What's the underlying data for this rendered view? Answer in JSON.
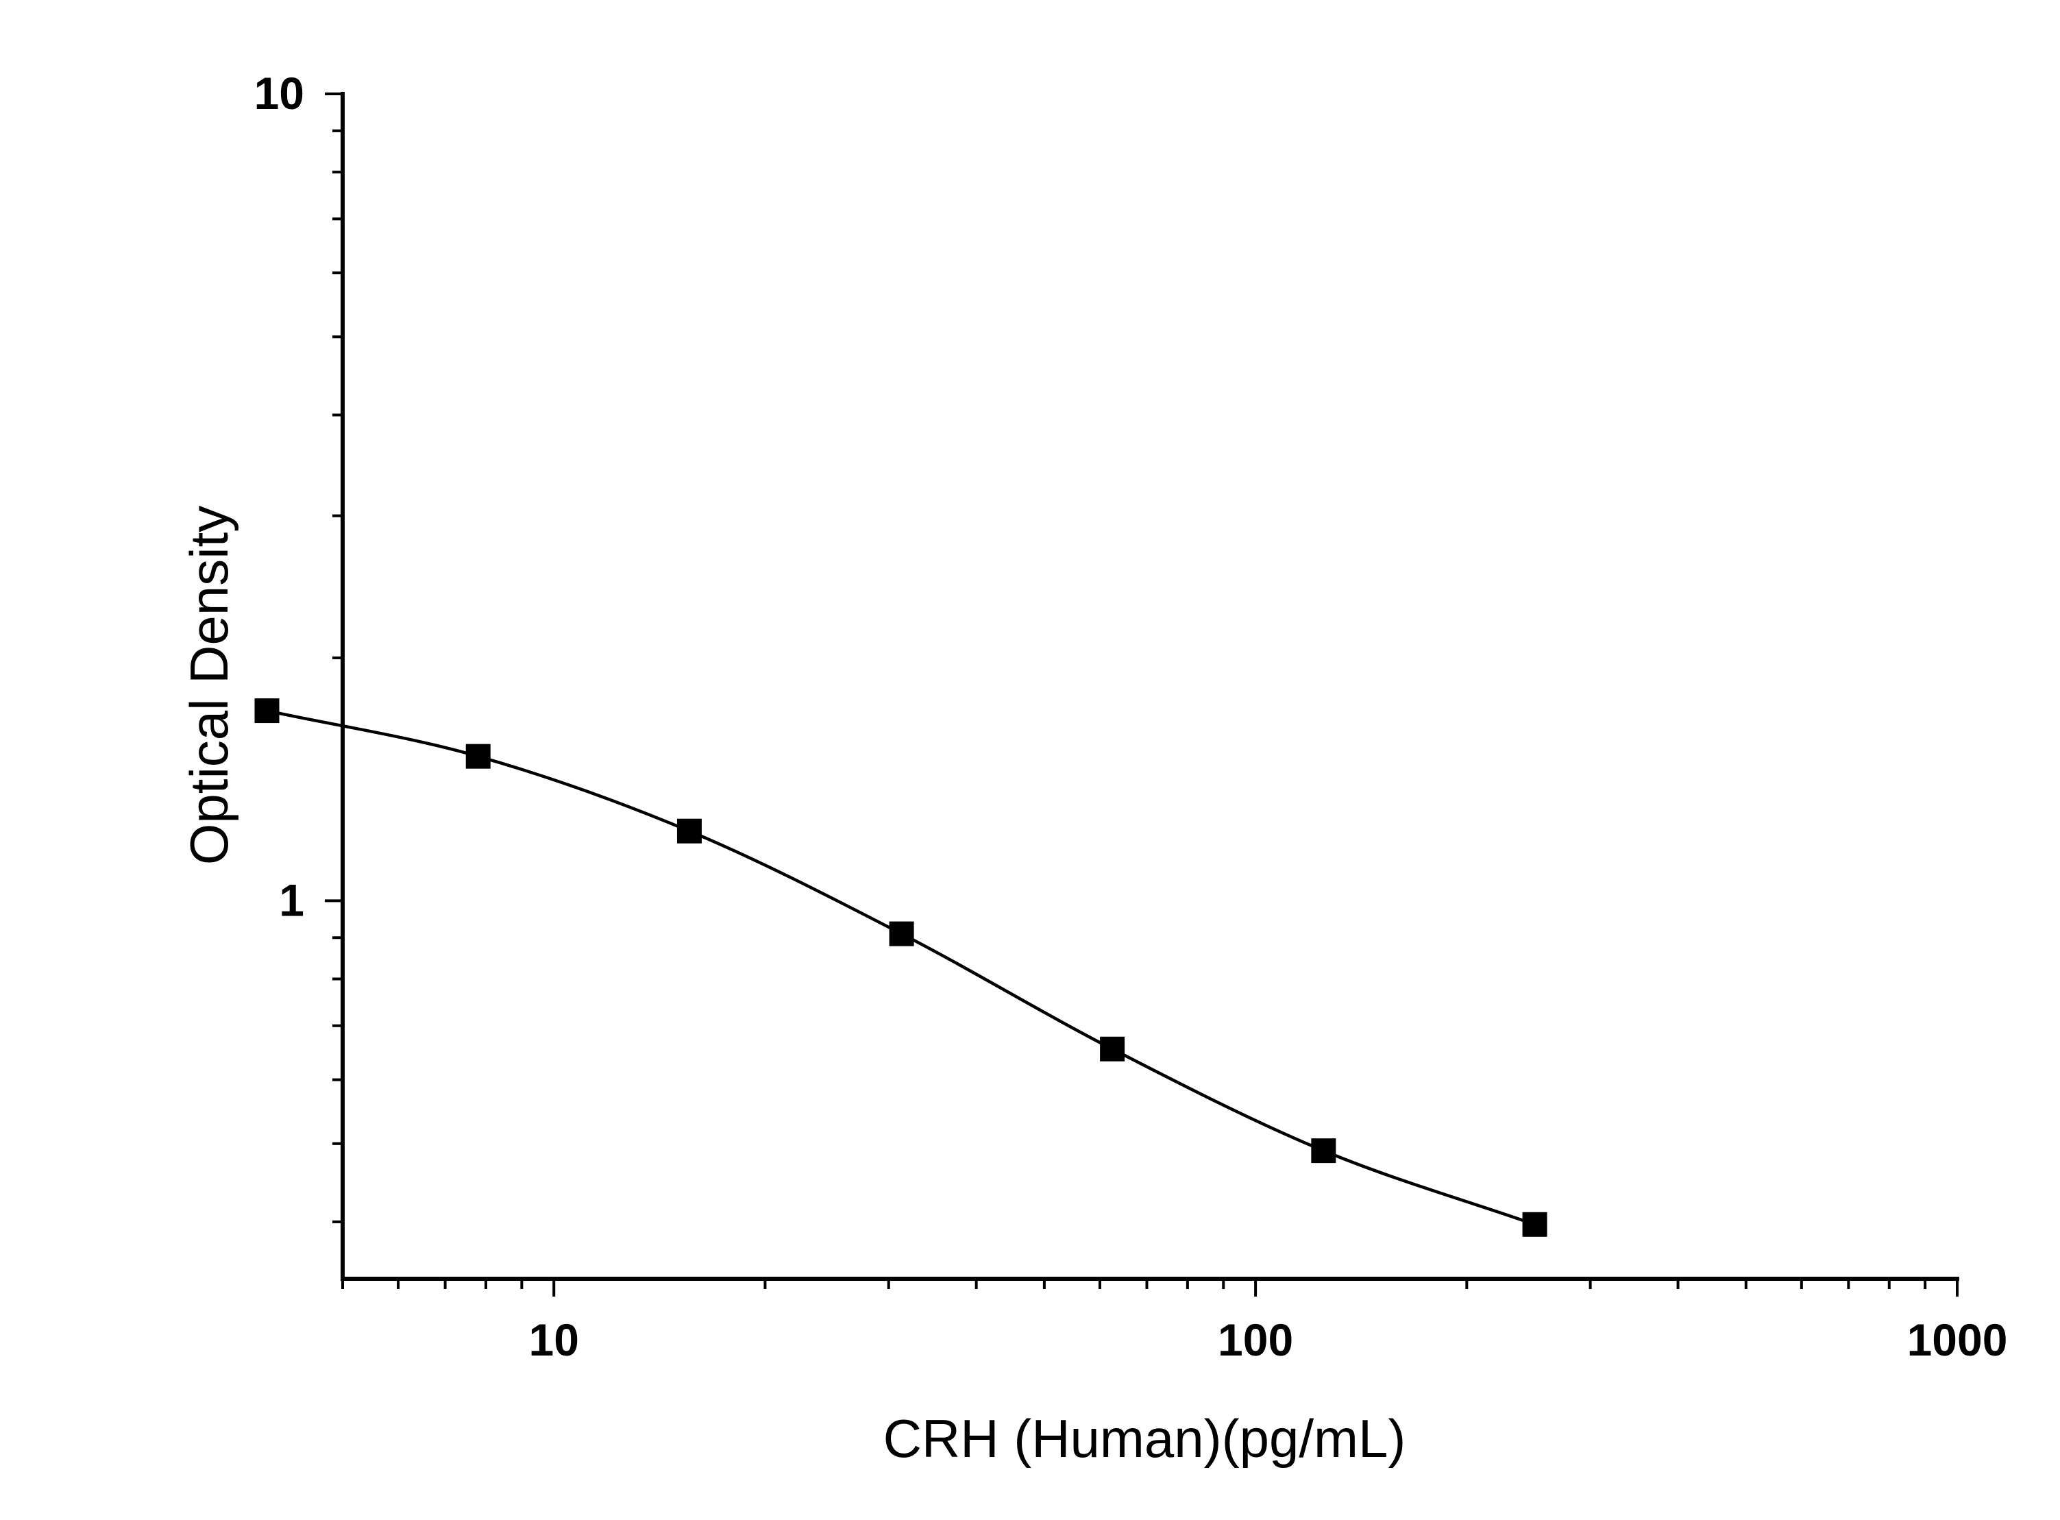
{
  "chart_data": {
    "type": "scatter",
    "title": "",
    "xlabel": "CRH (Human)(pg/mL)",
    "ylabel": "Optical Density",
    "xscale": "log",
    "yscale": "log",
    "xlim": [
      5,
      1000
    ],
    "ylim": [
      0.34,
      10
    ],
    "x_ticks": [
      10,
      100,
      1000
    ],
    "x_tick_labels": [
      "10",
      "100",
      "1000"
    ],
    "y_ticks": [
      1,
      10
    ],
    "y_tick_labels": [
      "1",
      "10"
    ],
    "grid": false,
    "legend": "none",
    "marker": "square",
    "color": "#000000",
    "series": [
      {
        "x": [
          3.9,
          7.8,
          15.6,
          31.3,
          62.5,
          125,
          250
        ],
        "y": [
          1.72,
          1.51,
          1.22,
          0.91,
          0.655,
          0.49,
          0.397
        ],
        "fit": "4PL smooth curve"
      }
    ]
  }
}
